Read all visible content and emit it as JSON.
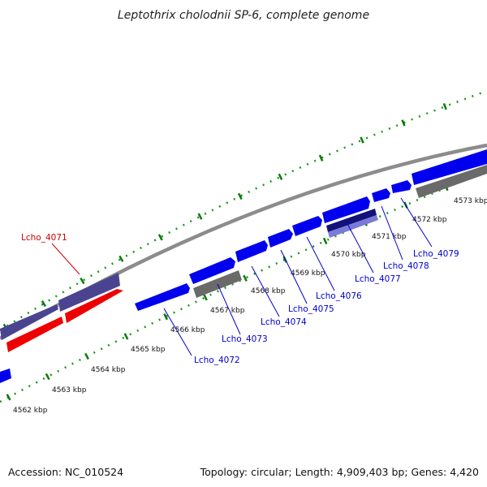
{
  "title": "Leptothrix cholodnii SP-6, complete genome",
  "footer": {
    "accession": "Accession: NC_010524",
    "summary": "Topology: circular; Length: 4,909,403 bp; Genes: 4,420"
  },
  "colors": {
    "backbone": "#8c8c8c",
    "tick_major": "#0a7a0a",
    "tick_minor": "#1a9a1a",
    "gene_blue": "#0000ee",
    "gene_red": "#ee0000",
    "gene_slate": "#4a4490",
    "gene_gray": "#6a6a6a",
    "gene_navy": "#12127a",
    "gene_lavender": "#7a7ad8",
    "label_blue": "#0000cc",
    "label_red": "#cc0000"
  },
  "scale_labels": [
    "4562 kbp",
    "4563 kbp",
    "4564 kbp",
    "4565 kbp",
    "4566 kbp",
    "4567 kbp",
    "4568 kbp",
    "4569 kbp",
    "4570 kbp",
    "4571 kbp",
    "4572 kbp",
    "4573 kbp"
  ],
  "gene_labels": [
    {
      "text": "Lcho_4071",
      "color": "red"
    },
    {
      "text": "Lcho_4072",
      "color": "blue"
    },
    {
      "text": "Lcho_4073",
      "color": "blue"
    },
    {
      "text": "Lcho_4074",
      "color": "blue"
    },
    {
      "text": "Lcho_4075",
      "color": "blue"
    },
    {
      "text": "Lcho_4076",
      "color": "blue"
    },
    {
      "text": "Lcho_4077",
      "color": "blue"
    },
    {
      "text": "Lcho_4078",
      "color": "blue"
    },
    {
      "text": "Lcho_4079",
      "color": "blue"
    }
  ]
}
